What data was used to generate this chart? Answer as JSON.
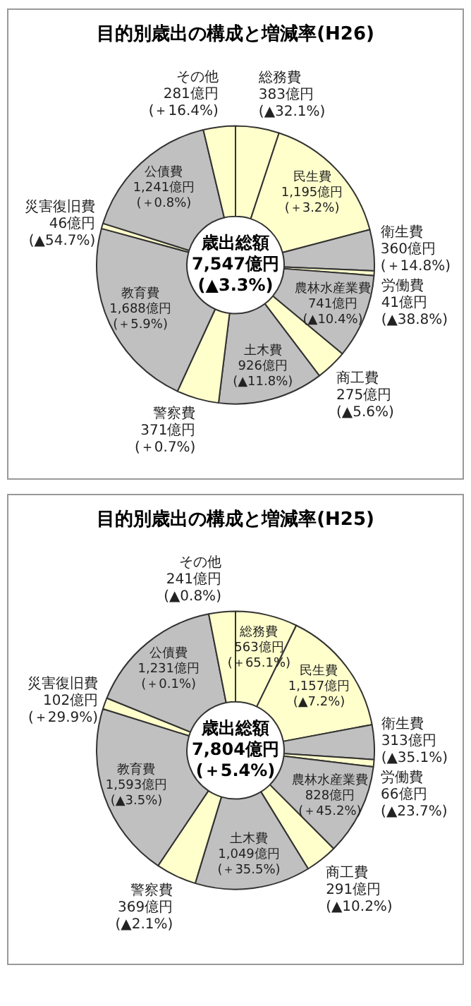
{
  "chart_data": [
    {
      "type": "donut",
      "title": "目的別歳出の構成と増減率(H26)",
      "categories": [
        "総務費",
        "民生費",
        "衛生費",
        "労働費",
        "農林水産業費",
        "商工費",
        "土木費",
        "警察費",
        "教育費",
        "災害復旧費",
        "公債費",
        "その他"
      ],
      "values": [
        383,
        1195,
        360,
        41,
        741,
        275,
        926,
        371,
        1688,
        46,
        1241,
        281
      ],
      "colors": [
        "#ffffcc",
        "#ffffcc",
        "#c0c0c0",
        "#ffffcc",
        "#c0c0c0",
        "#ffffcc",
        "#c0c0c0",
        "#ffffcc",
        "#c0c0c0",
        "#ffffcc",
        "#c0c0c0",
        "#ffffcc"
      ],
      "value_labels": [
        "383億円\n(▲32.1%)",
        "1,195億円\n(＋3.2%)",
        "360億円\n(＋14.8%)",
        "41億円\n(▲38.8%)",
        "741億円\n(▲10.4%)",
        "275億円\n(▲5.6%)",
        "926億円\n(▲11.8%)",
        "371億円\n(＋0.7%)",
        "1,688億円\n(＋5.9%)",
        "46億円\n(▲54.7%)",
        "1,241億円\n(＋0.8%)",
        "281億円\n(＋16.4%)"
      ],
      "annotations": [
        "歳出総額",
        "7,547億円",
        "(▲3.3%)"
      ]
    },
    {
      "type": "donut",
      "title": "目的別歳出の構成と増減率(H25)",
      "categories": [
        "総務費",
        "民生費",
        "衛生費",
        "労働費",
        "農林水産業費",
        "商工費",
        "土木費",
        "警察費",
        "教育費",
        "災害復旧費",
        "公債費",
        "その他"
      ],
      "values": [
        563,
        1157,
        313,
        66,
        828,
        291,
        1049,
        369,
        1593,
        102,
        1231,
        241
      ],
      "colors": [
        "#ffffcc",
        "#ffffcc",
        "#c0c0c0",
        "#ffffcc",
        "#c0c0c0",
        "#ffffcc",
        "#c0c0c0",
        "#ffffcc",
        "#c0c0c0",
        "#ffffcc",
        "#c0c0c0",
        "#ffffcc"
      ],
      "value_labels": [
        "563億円\n(＋65.1%)",
        "1,157億円\n(▲7.2%)",
        "313億円\n(▲35.1%)",
        "66億円\n(▲23.7%)",
        "828億円\n(＋45.2%)",
        "291億円\n(▲10.2%)",
        "1,049億円\n(＋35.5%)",
        "369億円\n(▲2.1%)",
        "1,593億円\n(▲3.5%)",
        "102億円\n(＋29.9%)",
        "1,231億円\n(＋0.1%)",
        "241億円\n(▲0.8%)"
      ],
      "annotations": [
        "歳出総額",
        "7,804億円",
        "(＋5.4%)"
      ]
    }
  ]
}
